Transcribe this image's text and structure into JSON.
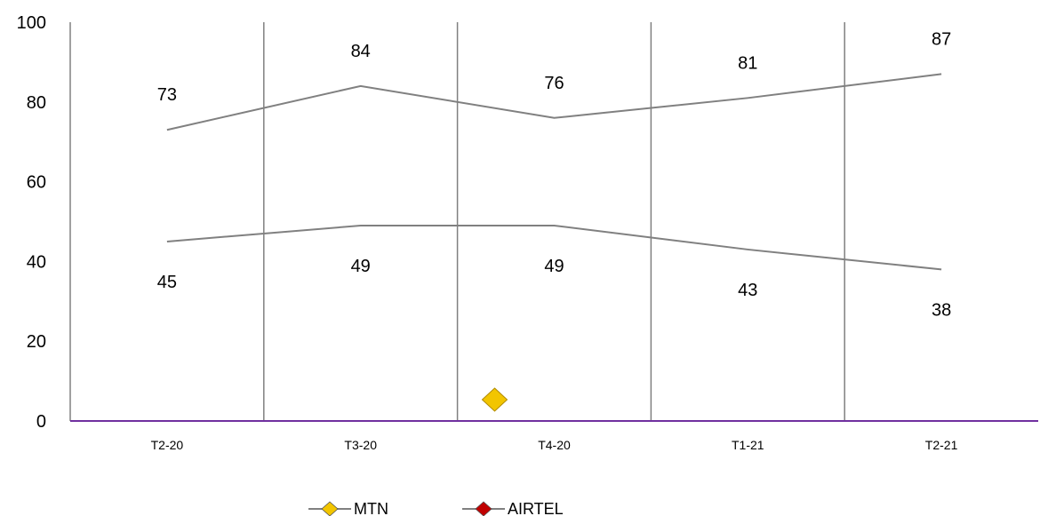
{
  "chart_data": {
    "type": "line",
    "categories": [
      "T2-20",
      "T3-20",
      "T4-20",
      "T1-21",
      "T2-21"
    ],
    "ylim": [
      0,
      100
    ],
    "yticks": [
      0,
      20,
      40,
      60,
      80,
      100
    ],
    "grid": "vertical",
    "legend_position": "bottom",
    "series": [
      {
        "name": "MTN",
        "values": [
          73,
          84,
          76,
          81,
          87
        ],
        "line_color": "#808080",
        "marker_color": "#F2C500"
      },
      {
        "name": "AIRTEL",
        "values": [
          45,
          49,
          49,
          43,
          38
        ],
        "line_color": "#808080",
        "marker_color": "#C00000"
      }
    ],
    "axis_color": "#7030A0",
    "grid_color": "#808080"
  }
}
